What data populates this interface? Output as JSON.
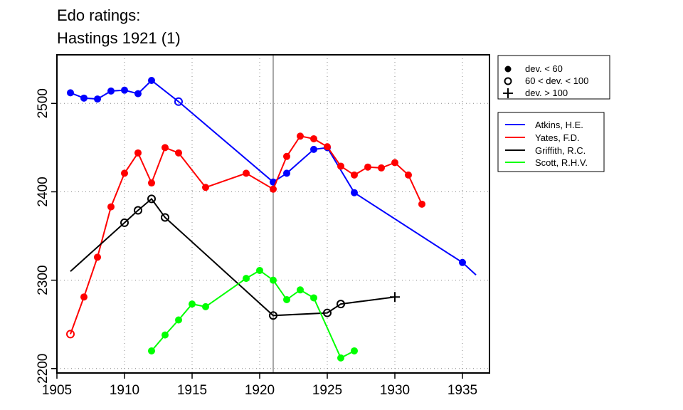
{
  "chart_data": {
    "type": "line",
    "title_lines": [
      "Edo ratings:",
      "Hastings 1921 (1)"
    ],
    "xlim": [
      1905,
      1937
    ],
    "ylim": [
      2195,
      2555
    ],
    "x_ticks": [
      1905,
      1910,
      1915,
      1920,
      1925,
      1930,
      1935
    ],
    "y_ticks": [
      2200,
      2300,
      2400,
      2500
    ],
    "grid": "dotted",
    "reference_line_x": 1921,
    "marker_legend": [
      {
        "symbol": "filled",
        "label": "dev. < 60"
      },
      {
        "symbol": "open",
        "label": "60 < dev. < 100"
      },
      {
        "symbol": "plus",
        "label": "dev. > 100"
      }
    ],
    "series": [
      {
        "name": "Atkins, H.E.",
        "color": "#0000ff",
        "points": [
          {
            "x": 1906,
            "y": 2512,
            "m": "filled"
          },
          {
            "x": 1907,
            "y": 2506,
            "m": "filled"
          },
          {
            "x": 1908,
            "y": 2505,
            "m": "filled"
          },
          {
            "x": 1909,
            "y": 2514,
            "m": "filled"
          },
          {
            "x": 1910,
            "y": 2515,
            "m": "filled"
          },
          {
            "x": 1911,
            "y": 2511,
            "m": "filled"
          },
          {
            "x": 1912,
            "y": 2526,
            "m": "filled"
          },
          {
            "x": 1914,
            "y": 2502,
            "m": "open"
          },
          {
            "x": 1921,
            "y": 2411,
            "m": "filled"
          },
          {
            "x": 1922,
            "y": 2421,
            "m": "filled"
          },
          {
            "x": 1924,
            "y": 2448,
            "m": "filled"
          },
          {
            "x": 1925,
            "y": 2450,
            "m": "filled"
          },
          {
            "x": 1927,
            "y": 2399,
            "m": "filled"
          },
          {
            "x": 1935,
            "y": 2320,
            "m": "filled"
          },
          {
            "x": 1936,
            "y": 2306,
            "m": "none"
          }
        ]
      },
      {
        "name": "Yates, F.D.",
        "color": "#ff0000",
        "points": [
          {
            "x": 1906,
            "y": 2239,
            "m": "open"
          },
          {
            "x": 1907,
            "y": 2281,
            "m": "filled"
          },
          {
            "x": 1908,
            "y": 2326,
            "m": "filled"
          },
          {
            "x": 1909,
            "y": 2383,
            "m": "filled"
          },
          {
            "x": 1910,
            "y": 2421,
            "m": "filled"
          },
          {
            "x": 1911,
            "y": 2444,
            "m": "filled"
          },
          {
            "x": 1912,
            "y": 2410,
            "m": "filled"
          },
          {
            "x": 1913,
            "y": 2450,
            "m": "filled"
          },
          {
            "x": 1914,
            "y": 2444,
            "m": "filled"
          },
          {
            "x": 1916,
            "y": 2405,
            "m": "filled"
          },
          {
            "x": 1919,
            "y": 2421,
            "m": "filled"
          },
          {
            "x": 1921,
            "y": 2403,
            "m": "filled"
          },
          {
            "x": 1922,
            "y": 2440,
            "m": "filled"
          },
          {
            "x": 1923,
            "y": 2463,
            "m": "filled"
          },
          {
            "x": 1924,
            "y": 2460,
            "m": "filled"
          },
          {
            "x": 1925,
            "y": 2451,
            "m": "filled"
          },
          {
            "x": 1926,
            "y": 2429,
            "m": "filled"
          },
          {
            "x": 1927,
            "y": 2419,
            "m": "filled"
          },
          {
            "x": 1928,
            "y": 2428,
            "m": "filled"
          },
          {
            "x": 1929,
            "y": 2427,
            "m": "filled"
          },
          {
            "x": 1930,
            "y": 2433,
            "m": "filled"
          },
          {
            "x": 1931,
            "y": 2419,
            "m": "filled"
          },
          {
            "x": 1932,
            "y": 2386,
            "m": "filled"
          }
        ]
      },
      {
        "name": "Griffith, R.C.",
        "color": "#000000",
        "points": [
          {
            "x": 1906,
            "y": 2310,
            "m": "none"
          },
          {
            "x": 1910,
            "y": 2365,
            "m": "open"
          },
          {
            "x": 1911,
            "y": 2379,
            "m": "open"
          },
          {
            "x": 1912,
            "y": 2392,
            "m": "open"
          },
          {
            "x": 1913,
            "y": 2371,
            "m": "open"
          },
          {
            "x": 1921,
            "y": 2260,
            "m": "open"
          },
          {
            "x": 1925,
            "y": 2263,
            "m": "open"
          },
          {
            "x": 1926,
            "y": 2273,
            "m": "open"
          },
          {
            "x": 1930,
            "y": 2281,
            "m": "plus"
          }
        ]
      },
      {
        "name": "Scott, R.H.V.",
        "color": "#00ff00",
        "points": [
          {
            "x": 1912,
            "y": 2220,
            "m": "filled"
          },
          {
            "x": 1913,
            "y": 2238,
            "m": "filled"
          },
          {
            "x": 1914,
            "y": 2255,
            "m": "filled"
          },
          {
            "x": 1915,
            "y": 2273,
            "m": "filled"
          },
          {
            "x": 1916,
            "y": 2270,
            "m": "filled"
          },
          {
            "x": 1919,
            "y": 2302,
            "m": "filled"
          },
          {
            "x": 1920,
            "y": 2311,
            "m": "filled"
          },
          {
            "x": 1921,
            "y": 2300,
            "m": "filled"
          },
          {
            "x": 1922,
            "y": 2278,
            "m": "filled"
          },
          {
            "x": 1923,
            "y": 2289,
            "m": "filled"
          },
          {
            "x": 1924,
            "y": 2280,
            "m": "filled"
          },
          {
            "x": 1926,
            "y": 2212,
            "m": "filled"
          },
          {
            "x": 1927,
            "y": 2220,
            "m": "filled"
          }
        ]
      }
    ]
  }
}
